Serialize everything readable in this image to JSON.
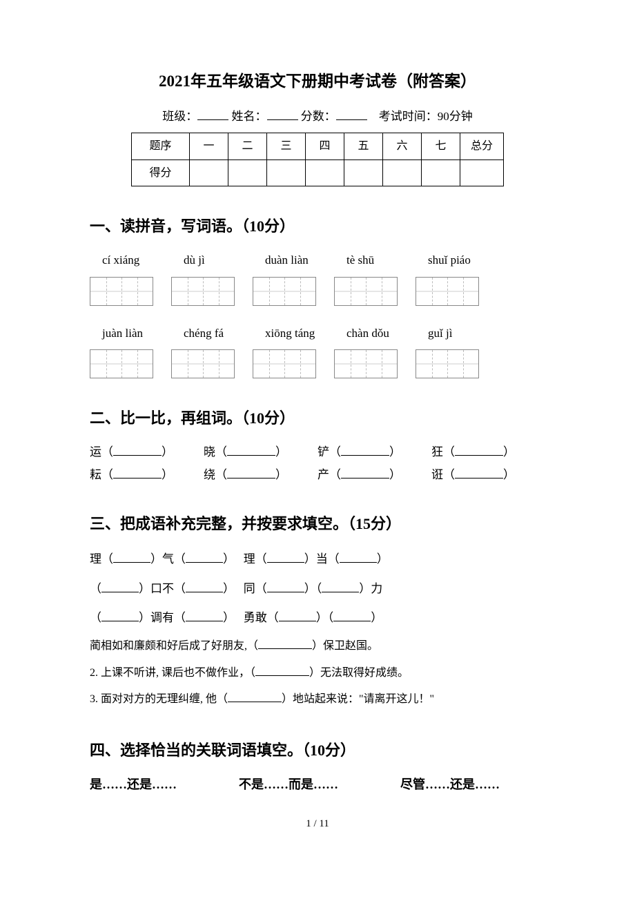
{
  "title": "2021年五年级语文下册期中考试卷（附答案）",
  "header": {
    "class_label": "班级：",
    "name_label": "姓名：",
    "score_label": "分数：",
    "time_label": "考试时间：90分钟"
  },
  "score_table": {
    "row_label_1": "题序",
    "row_label_2": "得分",
    "cols": [
      "一",
      "二",
      "三",
      "四",
      "五",
      "六",
      "七",
      "总分"
    ]
  },
  "s1": {
    "heading": "一、读拼音，写词语。（10分）",
    "row1": [
      "cí xiáng",
      "dù jì",
      "duàn liàn",
      "tè shū",
      "shuǐ piáo"
    ],
    "row2": [
      "juàn liàn",
      "chéng fá",
      "xiōng táng",
      "chàn dǒu",
      "guǐ jì"
    ]
  },
  "s2": {
    "heading": "二、比一比，再组词。（10分）",
    "row1": [
      "运（",
      "晓（",
      "铲（",
      "狂（"
    ],
    "row2": [
      "耘（",
      "绕（",
      "产（",
      "诳（"
    ]
  },
  "s3": {
    "heading": "三、把成语补充完整，并按要求填空。（15分）",
    "line1a": "理（",
    "line1b": "）气（",
    "line1c": "）",
    "line1d": "理（",
    "line1e": "）当（",
    "line1f": "）",
    "line2a": "（",
    "line2b": "）口不（",
    "line2c": "）",
    "line2d": "同（",
    "line2e": "）（",
    "line2f": "）力",
    "line3a": "（",
    "line3b": "）调有（",
    "line3c": "）",
    "line3d": "勇敢（",
    "line3e": "）（",
    "line3f": "）",
    "sent1_pre": "蔺相如和廉颇和好后成了好朋友,（",
    "sent1_post": "）保卫赵国。",
    "sent2_pre": "2. 上课不听讲, 课后也不做作业，（",
    "sent2_post": "）无法取得好成绩。",
    "sent3_pre": "3. 面对对方的无理纠缠, 他（",
    "sent3_post": "）地站起来说：\"请离开这儿！\""
  },
  "s4": {
    "heading": "四、选择恰当的关联词语填空。（10分）",
    "opts": [
      "是……还是……",
      "不是……而是……",
      "尽管……还是……"
    ]
  },
  "pagenum": "1 / 11"
}
